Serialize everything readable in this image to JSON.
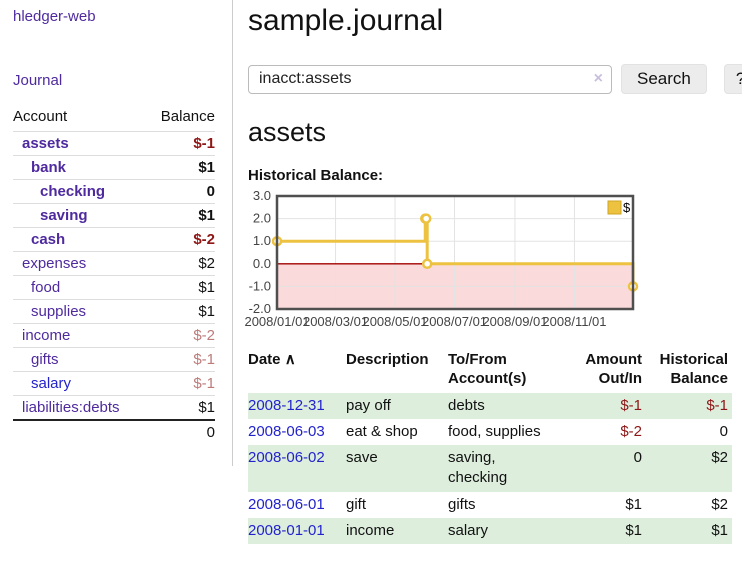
{
  "sidebar": {
    "brand": "hledger-web",
    "nav_journal": "Journal",
    "accounts_table": {
      "col_account": "Account",
      "col_balance": "Balance",
      "rows": [
        {
          "account": "assets",
          "balance": "$-1",
          "depth": 1,
          "bold": true,
          "tone": "neg-strong",
          "link": "purple"
        },
        {
          "account": "bank",
          "balance": "$1",
          "depth": 2,
          "bold": true,
          "tone": null,
          "link": "purple"
        },
        {
          "account": "checking",
          "balance": "0",
          "depth": 3,
          "bold": true,
          "tone": null,
          "link": "purple"
        },
        {
          "account": "saving",
          "balance": "$1",
          "depth": 3,
          "bold": true,
          "tone": null,
          "link": "purple"
        },
        {
          "account": "cash",
          "balance": "$-2",
          "depth": 2,
          "bold": true,
          "tone": "neg-strong",
          "link": "purple"
        },
        {
          "account": "expenses",
          "balance": "$2",
          "depth": 1,
          "bold": false,
          "tone": null,
          "link": "purple"
        },
        {
          "account": "food",
          "balance": "$1",
          "depth": 2,
          "bold": false,
          "tone": null,
          "link": "purple"
        },
        {
          "account": "supplies",
          "balance": "$1",
          "depth": 2,
          "bold": false,
          "tone": null,
          "link": "purple"
        },
        {
          "account": "income",
          "balance": "$-2",
          "depth": 1,
          "bold": false,
          "tone": "neg-soft",
          "link": "purple"
        },
        {
          "account": "gifts",
          "balance": "$-1",
          "depth": 2,
          "bold": false,
          "tone": "neg-soft",
          "link": "purple"
        },
        {
          "account": "salary",
          "balance": "$-1",
          "depth": 2,
          "bold": false,
          "tone": "neg-soft",
          "link": "blue"
        },
        {
          "account": "liabilities:debts",
          "balance": "$1",
          "depth": 1,
          "bold": false,
          "tone": null,
          "link": "purple"
        }
      ],
      "total": "0"
    }
  },
  "main": {
    "title": "sample.journal",
    "search": {
      "value": "inacct:assets",
      "clear_icon": "×",
      "search_button": "Search",
      "help_button": "?"
    },
    "account_heading": "assets",
    "chart_title": "Historical Balance:"
  },
  "chart_data": {
    "type": "line",
    "step": true,
    "title": "Historical Balance:",
    "legend": "$",
    "legend_position": "top-right",
    "grid": true,
    "ylim": [
      -2,
      3
    ],
    "yticks": [
      3,
      2,
      1,
      0,
      -1,
      -2
    ],
    "xrange": [
      "2008-01-01",
      "2008-12-31"
    ],
    "xticks": [
      {
        "date": "2008-01-01",
        "label": "2008/01/01"
      },
      {
        "date": "2008-03-01",
        "label": "2008/03/01"
      },
      {
        "date": "2008-05-01",
        "label": "2008/05/01"
      },
      {
        "date": "2008-07-01",
        "label": "2008/07/01"
      },
      {
        "date": "2008-09-01",
        "label": "2008/09/01"
      },
      {
        "date": "2008-11-01",
        "label": "2008/11/01"
      }
    ],
    "points": [
      {
        "date": "2008-01-01",
        "value": 1
      },
      {
        "date": "2008-06-01",
        "value": 2
      },
      {
        "date": "2008-06-02",
        "value": 2
      },
      {
        "date": "2008-06-03",
        "value": 0
      },
      {
        "date": "2008-12-31",
        "value": -1
      }
    ],
    "colors": {
      "series": "#edc240",
      "series_border": "#cfa425",
      "marker_fill": "#ffffff",
      "negative_region": "#fadada",
      "zero_line": "#a00000",
      "border": "#4f4f4f",
      "grid": "#e3e3e3",
      "tick_text": "#444444"
    }
  },
  "register": {
    "headers": {
      "date": "Date",
      "sort": "∧",
      "description": "Description",
      "tofrom1": "To/From",
      "tofrom2": "Account(s)",
      "amount1": "Amount",
      "amount2": "Out/In",
      "hist1": "Historical",
      "hist2": "Balance"
    },
    "rows": [
      {
        "date": "2008-12-31",
        "description": "pay off",
        "accounts": "debts",
        "amount": "$-1",
        "balance": "$-1"
      },
      {
        "date": "2008-06-03",
        "description": "eat & shop",
        "accounts": "food, supplies",
        "amount": "$-2",
        "balance": "0"
      },
      {
        "date": "2008-06-02",
        "description": "save",
        "accounts": "saving, checking",
        "amount": "0",
        "balance": "$2"
      },
      {
        "date": "2008-06-01",
        "description": "gift",
        "accounts": "gifts",
        "amount": "$1",
        "balance": "$2"
      },
      {
        "date": "2008-01-01",
        "description": "income",
        "accounts": "salary",
        "amount": "$1",
        "balance": "$1"
      }
    ]
  }
}
